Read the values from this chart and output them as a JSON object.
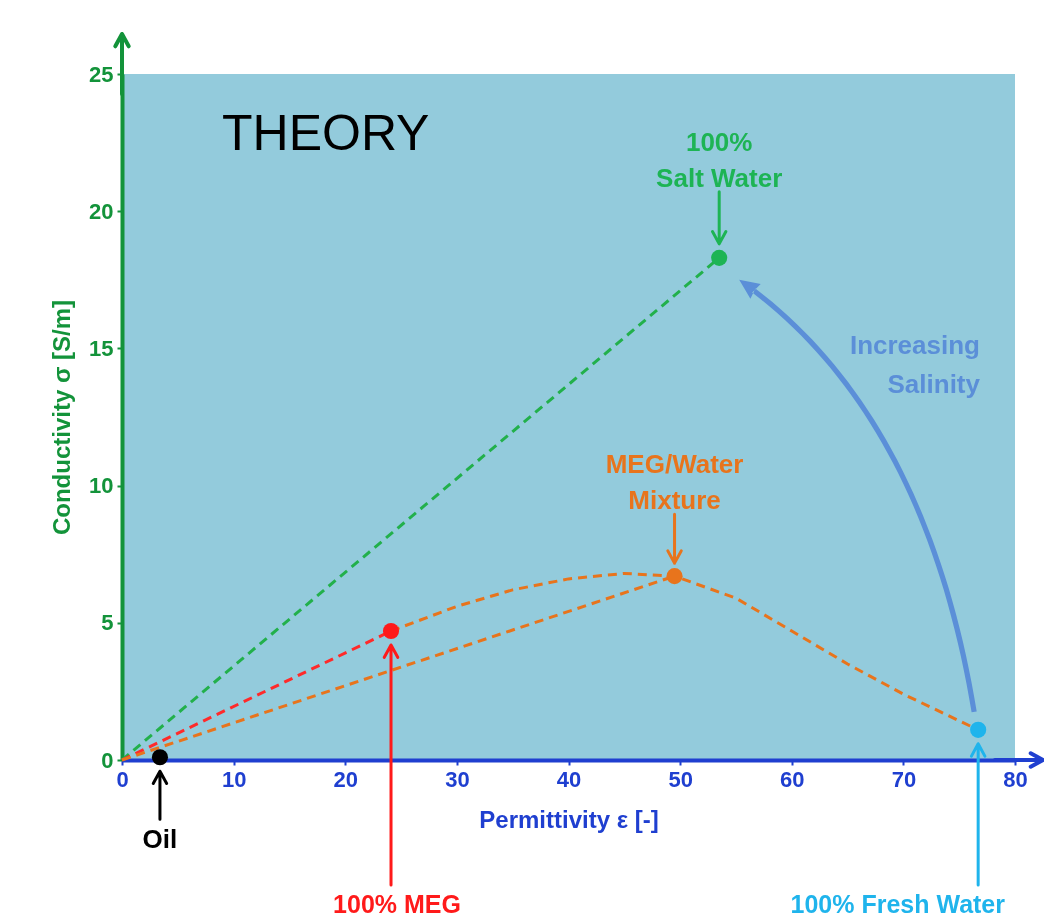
{
  "chart_data": {
    "type": "scatter",
    "xlabel": "Permittivity ε [-]",
    "ylabel": "Conductivity σ [S/m]",
    "xlim": [
      0,
      80
    ],
    "ylim": [
      0,
      25
    ],
    "xticks": [
      0,
      10,
      20,
      30,
      40,
      50,
      60,
      70,
      80
    ],
    "yticks": [
      0,
      5,
      10,
      15,
      20,
      25
    ],
    "grid": false,
    "series": [
      {
        "type": "line",
        "color": "#22b04b",
        "line_style": "dashed",
        "x": [
          0,
          53.5
        ],
        "values": [
          0,
          18.3
        ]
      },
      {
        "type": "line",
        "color": "#ff2a2a",
        "line_style": "dashed",
        "x": [
          0,
          24.1
        ],
        "values": [
          0,
          4.7
        ]
      },
      {
        "type": "line",
        "color": "#e8741c",
        "line_style": "dashed",
        "x": [
          0,
          49.5
        ],
        "values": [
          0,
          6.7
        ]
      },
      {
        "type": "line",
        "color": "#e8741c",
        "line_style": "dashed",
        "x": [
          24.1,
          30,
          35,
          40,
          45,
          49.5,
          55,
          60,
          65,
          70,
          76.7
        ],
        "values": [
          4.7,
          5.6,
          6.2,
          6.6,
          6.8,
          6.7,
          5.9,
          4.7,
          3.5,
          2.4,
          1.1
        ]
      },
      {
        "marker": "circle",
        "x": [
          3.4,
          24.1,
          49.5,
          53.5,
          76.7
        ],
        "values": [
          0.1,
          4.7,
          6.7,
          18.3,
          1.1
        ],
        "colors": [
          "#000000",
          "#ff1a1a",
          "#e8741c",
          "#1db454",
          "#1fb4ec"
        ]
      }
    ],
    "annotations": [
      "THEORY",
      {
        "text": "100%\nSalt Water",
        "x": 53.5,
        "y": 18.3
      },
      {
        "text": "MEG/Water\nMixture",
        "x": 49.5,
        "y": 6.7
      },
      "Increasing\nSalinity",
      {
        "text": "Oil",
        "x": 3.4,
        "y": 0.1
      },
      "100% MEG",
      "100% Fresh Water"
    ]
  }
}
